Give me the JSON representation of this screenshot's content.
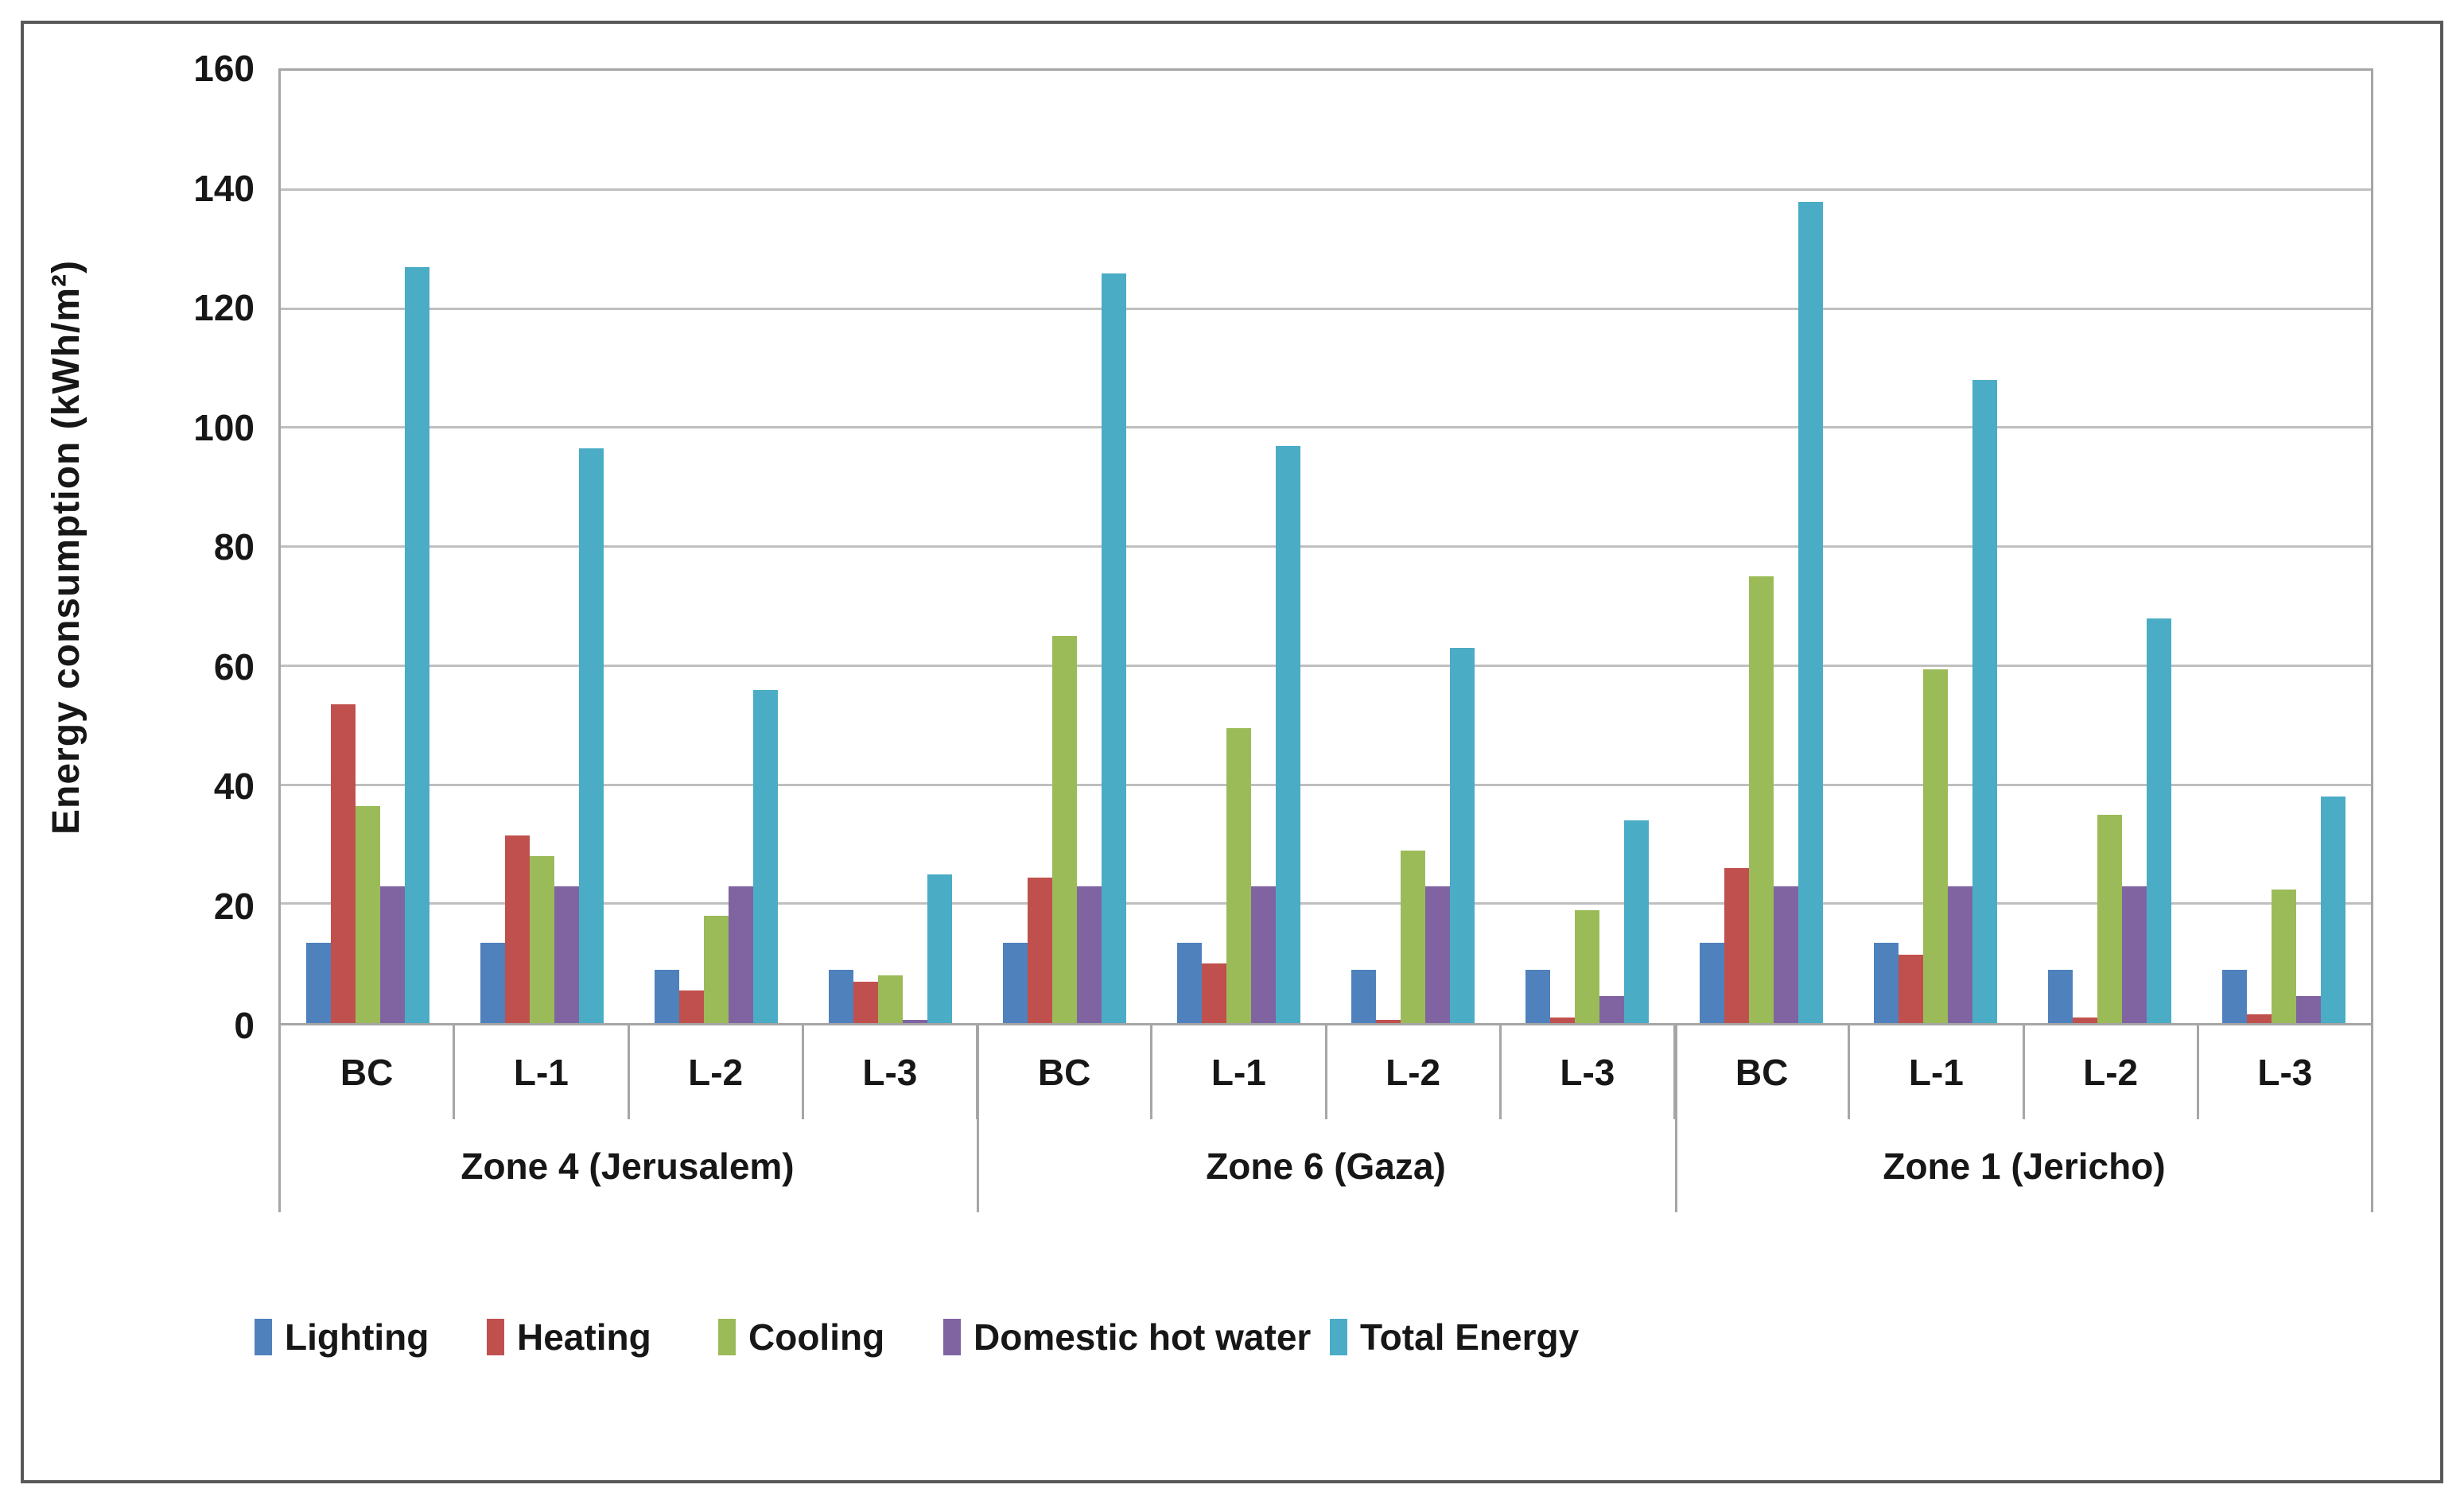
{
  "figure": {
    "background": "#ffffff",
    "frame_color": "#595959",
    "gridline_color": "#bfbfbf",
    "axis_line_color": "#a6a6a6"
  },
  "chart_data": {
    "type": "bar",
    "title": "",
    "ylabel": "Energy consumption (kWh/m²)",
    "xlabel": "",
    "ylim": [
      0,
      160
    ],
    "yticks": [
      0,
      20,
      40,
      60,
      80,
      100,
      120,
      140,
      160
    ],
    "grid": "horizontal",
    "legend_position": "bottom",
    "zones": [
      {
        "label": "Zone 4 (Jerusalem)",
        "cases": [
          "BC",
          "L-1",
          "L-2",
          "L-3"
        ]
      },
      {
        "label": "Zone 6 (Gaza)",
        "cases": [
          "BC",
          "L-1",
          "L-2",
          "L-3"
        ]
      },
      {
        "label": "Zone 1 (Jericho)",
        "cases": [
          "BC",
          "L-1",
          "L-2",
          "L-3"
        ]
      }
    ],
    "series": [
      {
        "name": "Lighting",
        "color": "#4F81BD",
        "values": [
          13.5,
          13.5,
          9,
          9,
          13.5,
          13.5,
          9,
          9,
          13.5,
          13.5,
          9,
          9
        ]
      },
      {
        "name": "Heating",
        "color": "#C0504D",
        "values": [
          53.5,
          31.5,
          5.5,
          7,
          24.5,
          10,
          0.5,
          1,
          26,
          11.5,
          1,
          1.5
        ]
      },
      {
        "name": "Cooling",
        "color": "#9BBB59",
        "values": [
          36.5,
          28,
          18,
          8,
          65,
          49.5,
          29,
          19,
          75,
          59.5,
          35,
          22.5
        ]
      },
      {
        "name": "Domestic hot water",
        "color": "#8064A2",
        "values": [
          23,
          23,
          23,
          0.5,
          23,
          23,
          23,
          4.5,
          23,
          23,
          23,
          4.5
        ]
      },
      {
        "name": "Total Energy",
        "color": "#4BACC6",
        "values": [
          127,
          96.5,
          56,
          25,
          126,
          97,
          63,
          34,
          138,
          108,
          68,
          38
        ]
      }
    ]
  }
}
